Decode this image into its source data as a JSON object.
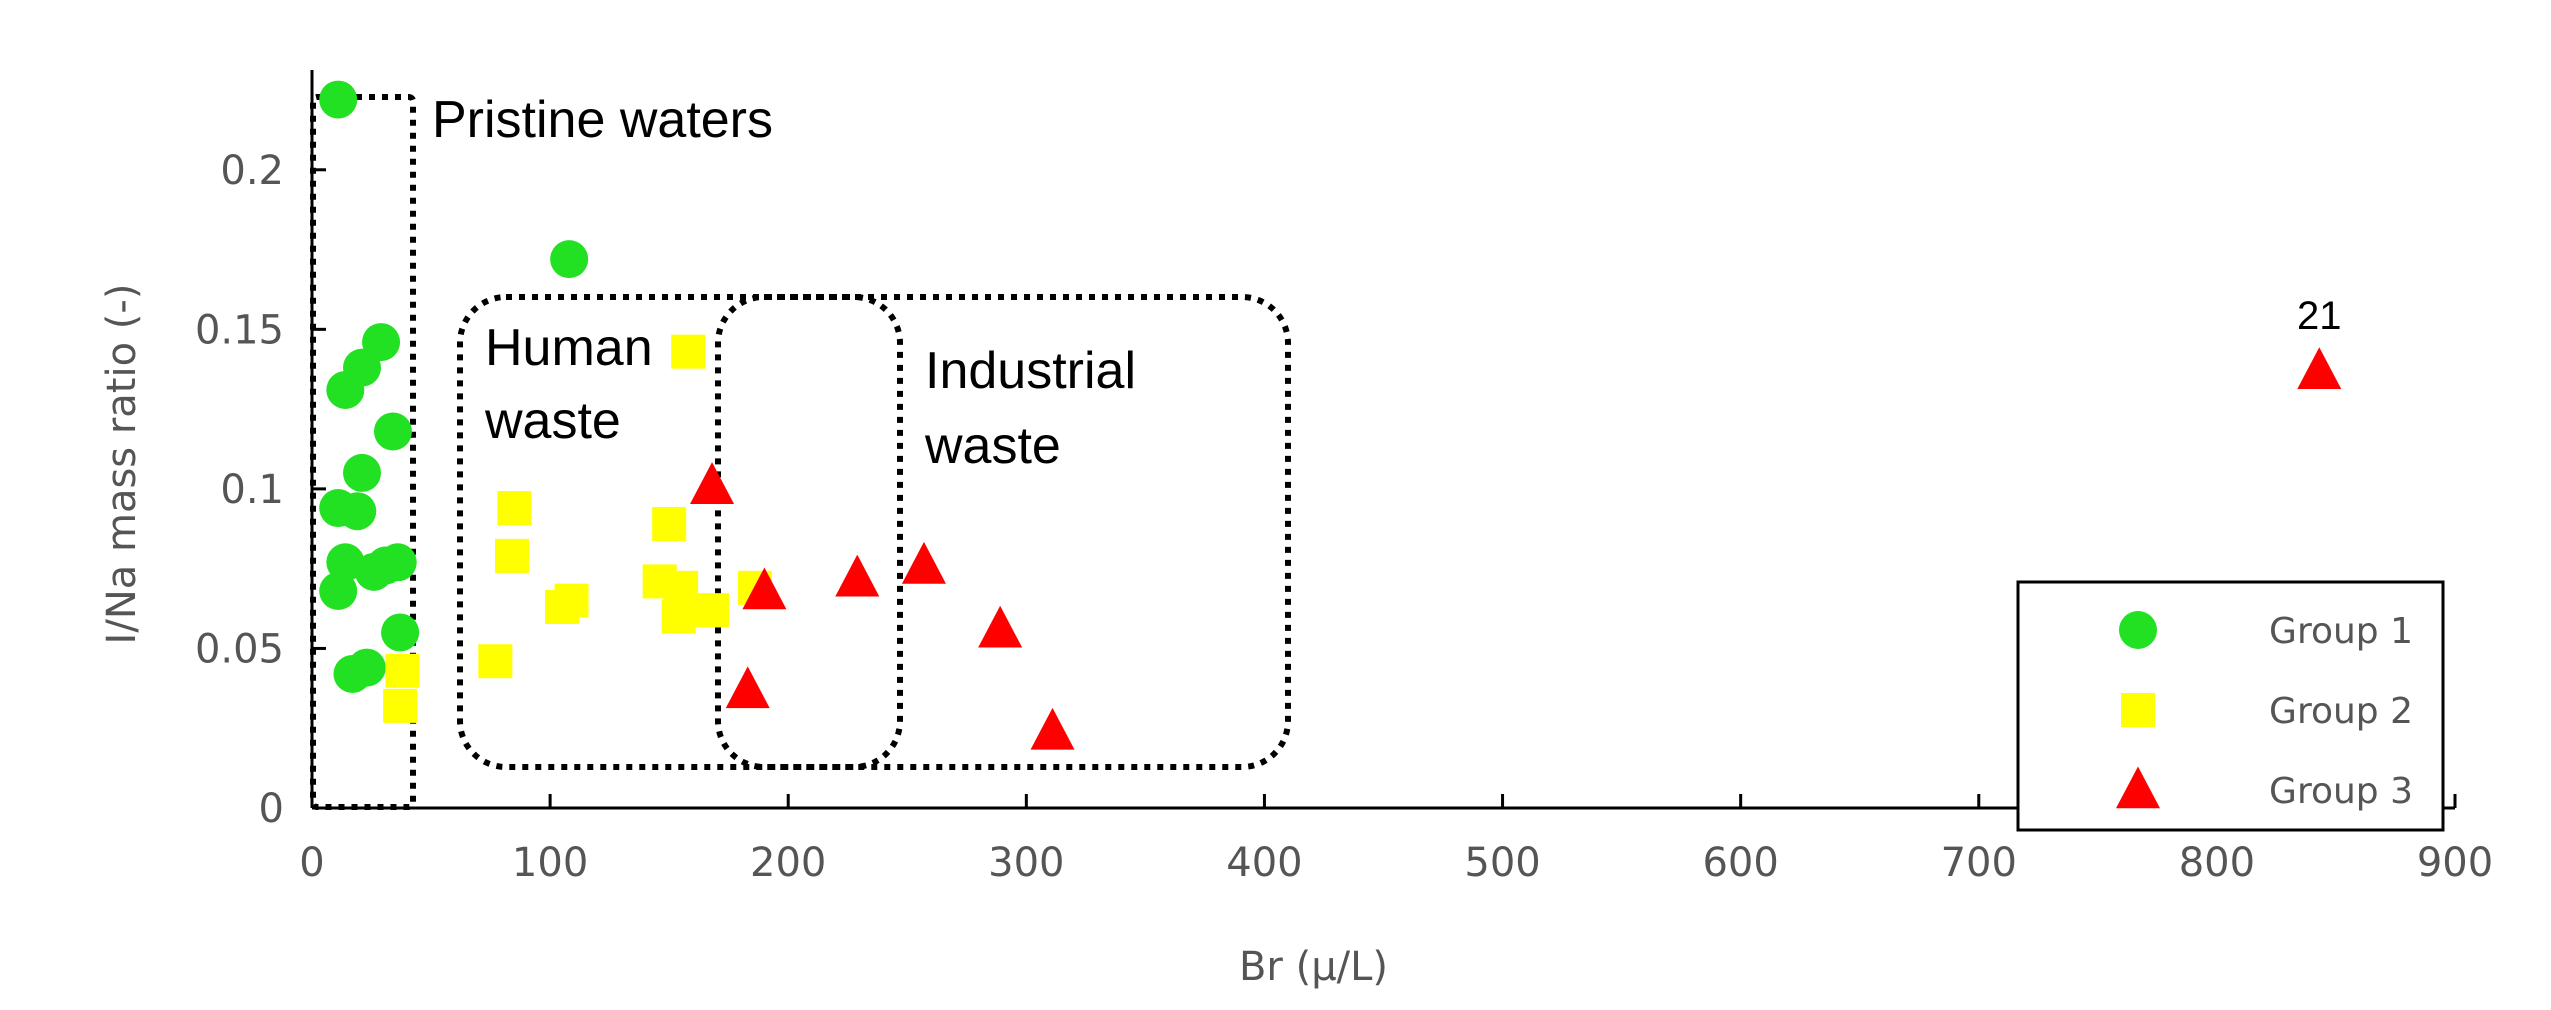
{
  "colors": {
    "group1": "#22e022",
    "group2": "#ffff00",
    "group3": "#ff0000",
    "axis": "#000000",
    "text": "#555555"
  },
  "chart_data": {
    "type": "scatter",
    "xlabel": "Br (μ/L)",
    "ylabel": "I/Na mass ratio (-)",
    "xlim": [
      0,
      900
    ],
    "ylim": [
      0,
      0.225
    ],
    "x_ticks": [
      "0",
      "100",
      "200",
      "300",
      "400",
      "500",
      "600",
      "700",
      "800",
      "900"
    ],
    "y_ticks": [
      "0",
      "0.05",
      "0.1",
      "0.15",
      "0.2"
    ],
    "grid": false,
    "legend_position": "right",
    "series": [
      {
        "name": "Group 1",
        "marker": "circle",
        "points": [
          [
            11,
            0.222
          ],
          [
            108,
            0.172
          ],
          [
            29,
            0.146
          ],
          [
            21,
            0.138
          ],
          [
            14,
            0.131
          ],
          [
            34,
            0.118
          ],
          [
            21,
            0.105
          ],
          [
            11,
            0.094
          ],
          [
            19,
            0.093
          ],
          [
            14,
            0.077
          ],
          [
            31,
            0.076
          ],
          [
            26,
            0.074
          ],
          [
            11,
            0.068
          ],
          [
            36,
            0.077
          ],
          [
            37,
            0.055
          ],
          [
            17,
            0.042
          ],
          [
            23,
            0.044
          ]
        ]
      },
      {
        "name": "Group 2",
        "marker": "square",
        "points": [
          [
            158,
            0.143
          ],
          [
            85,
            0.094
          ],
          [
            150,
            0.089
          ],
          [
            84,
            0.079
          ],
          [
            146,
            0.071
          ],
          [
            155,
            0.069
          ],
          [
            109,
            0.065
          ],
          [
            105,
            0.063
          ],
          [
            154,
            0.06
          ],
          [
            168,
            0.062
          ],
          [
            186,
            0.069
          ],
          [
            77,
            0.046
          ],
          [
            38,
            0.043
          ],
          [
            37,
            0.032
          ]
        ]
      },
      {
        "name": "Group 3",
        "marker": "triangle",
        "points": [
          [
            843,
            0.137
          ],
          [
            168,
            0.101
          ],
          [
            190,
            0.068
          ],
          [
            229,
            0.072
          ],
          [
            257,
            0.076
          ],
          [
            289,
            0.056
          ],
          [
            183,
            0.037
          ],
          [
            311,
            0.024
          ]
        ]
      }
    ],
    "point_labels": [
      {
        "text": "21",
        "x": 843,
        "y": 0.137
      }
    ],
    "annotations": [
      {
        "lines": [
          "Pristine waters"
        ]
      },
      {
        "lines": [
          "Human",
          "waste"
        ]
      },
      {
        "lines": [
          "Industrial",
          "waste"
        ]
      }
    ]
  }
}
